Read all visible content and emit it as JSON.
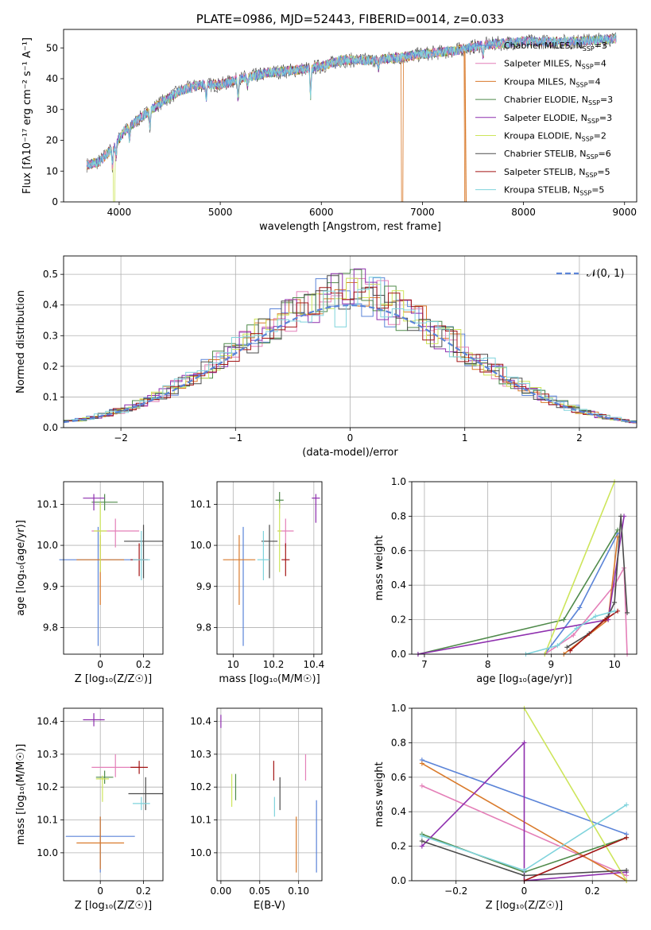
{
  "colors": {
    "chabrier_miles": "#5b84d8",
    "salpeter_miles": "#e47fb8",
    "kroupa_miles": "#d97a2b",
    "chabrier_elodie": "#4f8a4a",
    "salpeter_elodie": "#8e2fae",
    "kroupa_elodie": "#cde55a",
    "chabrier_stelib": "#4b4b4b",
    "salpeter_stelib": "#a31515",
    "kroupa_stelib": "#7fd3dc"
  },
  "chart_data": [
    {
      "id": "spectrum",
      "type": "line",
      "title": "PLATE=0986, MJD=52443, FIBERID=0014, z=0.033",
      "xlabel": "wavelength [Angstrom, rest frame]",
      "ylabel": "Flux [f$_\\lambda$10$^{-17}$ erg cm$^{-2}$ s$^{-1}$ A$^{-1}$]",
      "ylabel_display": "Flux [fλ10⁻¹⁷ erg cm⁻² s⁻¹ A⁻¹]",
      "xlim": [
        3450,
        9120
      ],
      "ylim": [
        0,
        56
      ],
      "xticks": [
        4000,
        5000,
        6000,
        7000,
        8000,
        9000
      ],
      "yticks": [
        0,
        10,
        20,
        30,
        40,
        50
      ],
      "legend_position": "top-right",
      "legend": [
        {
          "key": "chabrier_miles",
          "label": "Chabrier MILES, N",
          "sub": "SSP",
          "tail": "=3"
        },
        {
          "key": "salpeter_miles",
          "label": "Salpeter MILES, N",
          "sub": "SSP",
          "tail": "=4"
        },
        {
          "key": "kroupa_miles",
          "label": "Kroupa MILES, N",
          "sub": "SSP",
          "tail": "=4"
        },
        {
          "key": "chabrier_elodie",
          "label": "Chabrier ELODIE, N",
          "sub": "SSP",
          "tail": "=3"
        },
        {
          "key": "salpeter_elodie",
          "label": "Salpeter ELODIE, N",
          "sub": "SSP",
          "tail": "=3"
        },
        {
          "key": "kroupa_elodie",
          "label": "Kroupa ELODIE, N",
          "sub": "SSP",
          "tail": "=2"
        },
        {
          "key": "chabrier_stelib",
          "label": "Chabrier STELIB, N",
          "sub": "SSP",
          "tail": "=6"
        },
        {
          "key": "salpeter_stelib",
          "label": "Salpeter STELIB, N",
          "sub": "SSP",
          "tail": "=5"
        },
        {
          "key": "kroupa_stelib",
          "label": "Kroupa STELIB, N",
          "sub": "SSP",
          "tail": "=5"
        }
      ],
      "continuum_points": [
        [
          3680,
          12
        ],
        [
          3800,
          13
        ],
        [
          3950,
          18
        ],
        [
          4050,
          23
        ],
        [
          4200,
          27
        ],
        [
          4400,
          32
        ],
        [
          4600,
          36
        ],
        [
          4800,
          38
        ],
        [
          5000,
          38
        ],
        [
          5200,
          40
        ],
        [
          5500,
          42
        ],
        [
          5800,
          43
        ],
        [
          6000,
          44
        ],
        [
          6200,
          46
        ],
        [
          6500,
          46
        ],
        [
          6800,
          47
        ],
        [
          7000,
          48
        ],
        [
          7300,
          49
        ],
        [
          7600,
          51
        ],
        [
          8000,
          52
        ],
        [
          8500,
          52
        ],
        [
          8900,
          53
        ]
      ],
      "absorption_features": [
        [
          3934,
          6
        ],
        [
          3968,
          5
        ],
        [
          4102,
          4
        ],
        [
          4304,
          5
        ],
        [
          4861,
          4
        ],
        [
          5175,
          6
        ],
        [
          5270,
          3
        ],
        [
          5893,
          9
        ],
        [
          6563,
          3
        ],
        [
          7600,
          4
        ]
      ],
      "model_breaks": [
        {
          "key": "kroupa_elodie",
          "x": 3950
        },
        {
          "key": "kroupa_miles",
          "x": 6800
        },
        {
          "key": "kroupa_miles",
          "x": 7420
        }
      ]
    },
    {
      "id": "residuals",
      "type": "area",
      "xlabel": "(data-model)/error",
      "ylabel": "Normed distribution",
      "xlim": [
        -2.5,
        2.5
      ],
      "ylim": [
        0,
        0.56
      ],
      "xticks": [
        -2,
        -1,
        0,
        1,
        2
      ],
      "yticks": [
        0.0,
        0.1,
        0.2,
        0.3,
        0.4,
        0.5
      ],
      "grid": true,
      "legend_position": "top-right",
      "normal_label": "𝒩(0, 1)",
      "bin_width": 0.1
    },
    {
      "id": "age_vs_Z",
      "type": "scatter",
      "xlabel": "Z [log₁₀(Z/Z☉)]",
      "ylabel": "age  [log₁₀(age/yr)]",
      "xlim": [
        -0.17,
        0.29
      ],
      "ylim": [
        9.735,
        10.155
      ],
      "xticks": [
        0.0,
        0.2
      ],
      "yticks": [
        9.8,
        9.9,
        10.0,
        10.1
      ],
      "grid": true,
      "points": [
        {
          "key": "chabrier_miles",
          "x": -0.01,
          "y": 9.965,
          "xerr": 0.18,
          "yerr": [
            0.21,
            0.08
          ]
        },
        {
          "key": "salpeter_miles",
          "x": 0.07,
          "y": 10.035,
          "xerr": 0.11,
          "yerr": [
            0.04,
            0.03
          ]
        },
        {
          "key": "kroupa_miles",
          "x": 0.0,
          "y": 9.965,
          "xerr": 0.11,
          "yerr": [
            0.11,
            0.06
          ]
        },
        {
          "key": "chabrier_elodie",
          "x": 0.02,
          "y": 10.105,
          "xerr": 0.06,
          "yerr": [
            0.02,
            0.02
          ]
        },
        {
          "key": "salpeter_elodie",
          "x": -0.03,
          "y": 10.115,
          "xerr": 0.05,
          "yerr": [
            0.03,
            0.01
          ]
        },
        {
          "key": "kroupa_elodie",
          "x": 0.0,
          "y": 10.035,
          "xerr": 0.03,
          "yerr": [
            0.1,
            0.07
          ]
        },
        {
          "key": "chabrier_stelib",
          "x": 0.2,
          "y": 10.01,
          "xerr": 0.09,
          "yerr": [
            0.09,
            0.04
          ]
        },
        {
          "key": "salpeter_stelib",
          "x": 0.18,
          "y": 9.965,
          "xerr": 0.04,
          "yerr": [
            0.04,
            0.04
          ]
        },
        {
          "key": "kroupa_stelib",
          "x": 0.19,
          "y": 9.965,
          "xerr": 0.04,
          "yerr": [
            0.05,
            0.07
          ]
        }
      ]
    },
    {
      "id": "age_vs_mass",
      "type": "scatter",
      "xlabel": "mass [log₁₀(M/M☉)]",
      "xlim": [
        9.92,
        10.44
      ],
      "ylim": [
        9.735,
        10.155
      ],
      "xticks": [
        10.0,
        10.2,
        10.4
      ],
      "yticks": [
        9.8,
        9.9,
        10.0,
        10.1
      ],
      "grid": true,
      "points": [
        {
          "key": "chabrier_miles",
          "x": 10.05,
          "y": 9.965,
          "xerr": 0.0,
          "yerr": [
            0.21,
            0.08
          ]
        },
        {
          "key": "salpeter_miles",
          "x": 10.26,
          "y": 10.035,
          "xerr": 0.04,
          "yerr": [
            0.04,
            0.03
          ]
        },
        {
          "key": "kroupa_miles",
          "x": 10.03,
          "y": 9.965,
          "xerr": 0.08,
          "yerr": [
            0.11,
            0.06
          ]
        },
        {
          "key": "chabrier_elodie",
          "x": 10.23,
          "y": 10.11,
          "xerr": 0.02,
          "yerr": [
            0.02,
            0.02
          ]
        },
        {
          "key": "salpeter_elodie",
          "x": 10.41,
          "y": 10.115,
          "xerr": 0.02,
          "yerr": [
            0.06,
            0.01
          ]
        },
        {
          "key": "kroupa_elodie",
          "x": 10.23,
          "y": 10.035,
          "xerr": 0.01,
          "yerr": [
            0.1,
            0.07
          ]
        },
        {
          "key": "chabrier_stelib",
          "x": 10.18,
          "y": 10.01,
          "xerr": 0.04,
          "yerr": [
            0.09,
            0.04
          ]
        },
        {
          "key": "salpeter_stelib",
          "x": 10.26,
          "y": 9.965,
          "xerr": 0.02,
          "yerr": [
            0.04,
            0.04
          ]
        },
        {
          "key": "kroupa_stelib",
          "x": 10.15,
          "y": 9.965,
          "xerr": 0.03,
          "yerr": [
            0.05,
            0.07
          ]
        }
      ]
    },
    {
      "id": "mass_weight_vs_age",
      "type": "line",
      "xlabel": "age  [log₁₀(age/yr)]",
      "ylabel": "mass weight",
      "xlim": [
        6.8,
        10.35
      ],
      "ylim": [
        0,
        1
      ],
      "xticks": [
        7,
        8,
        9,
        10
      ],
      "yticks": [
        0.0,
        0.2,
        0.4,
        0.6,
        0.8,
        1.0
      ],
      "grid": true,
      "series": [
        {
          "key": "chabrier_miles",
          "x": [
            8.9,
            9.45,
            10.05
          ],
          "y": [
            0.0,
            0.27,
            0.7
          ]
        },
        {
          "key": "salpeter_miles",
          "x": [
            8.9,
            9.35,
            10.0,
            10.15,
            10.2
          ],
          "y": [
            0.0,
            0.11,
            0.4,
            0.5,
            0.0
          ]
        },
        {
          "key": "kroupa_miles",
          "x": [
            9.2,
            9.9,
            10.05
          ],
          "y": [
            0.0,
            0.2,
            0.68
          ]
        },
        {
          "key": "chabrier_elodie",
          "x": [
            6.9,
            9.2,
            10.05
          ],
          "y": [
            0.0,
            0.2,
            0.72
          ]
        },
        {
          "key": "salpeter_elodie",
          "x": [
            6.9,
            9.9,
            10.15
          ],
          "y": [
            0.0,
            0.2,
            0.8
          ]
        },
        {
          "key": "kroupa_elodie",
          "x": [
            8.9,
            10.0
          ],
          "y": [
            0.0,
            1.0
          ]
        },
        {
          "key": "chabrier_stelib",
          "x": [
            9.25,
            9.6,
            9.9,
            10.0,
            10.1,
            10.2
          ],
          "y": [
            0.04,
            0.12,
            0.22,
            0.3,
            0.8,
            0.24
          ]
        },
        {
          "key": "salpeter_stelib",
          "x": [
            9.3,
            9.85,
            10.05
          ],
          "y": [
            0.02,
            0.2,
            0.25
          ]
        },
        {
          "key": "kroupa_stelib",
          "x": [
            8.6,
            9.1,
            9.4,
            9.7,
            10.0
          ],
          "y": [
            0.0,
            0.05,
            0.15,
            0.22,
            0.25
          ]
        }
      ]
    },
    {
      "id": "mass_vs_Z",
      "type": "scatter",
      "xlabel": "Z [log₁₀(Z/Z☉)]",
      "ylabel": "mass [log₁₀(M/M☉)]",
      "xlim": [
        -0.17,
        0.29
      ],
      "ylim": [
        9.915,
        10.44
      ],
      "xticks": [
        0.0,
        0.2
      ],
      "yticks": [
        10.0,
        10.1,
        10.2,
        10.3,
        10.4
      ],
      "grid": true,
      "points": [
        {
          "key": "chabrier_miles",
          "x": 0.0,
          "y": 10.05,
          "xerr": 0.16,
          "yerr": [
            0.11,
            0.06
          ]
        },
        {
          "key": "salpeter_miles",
          "x": 0.07,
          "y": 10.26,
          "xerr": 0.11,
          "yerr": [
            0.03,
            0.04
          ]
        },
        {
          "key": "kroupa_miles",
          "x": 0.0,
          "y": 10.03,
          "xerr": 0.11,
          "yerr": [
            0.08,
            0.08
          ]
        },
        {
          "key": "chabrier_elodie",
          "x": 0.02,
          "y": 10.23,
          "xerr": 0.04,
          "yerr": [
            0.02,
            0.02
          ]
        },
        {
          "key": "salpeter_elodie",
          "x": -0.03,
          "y": 10.405,
          "xerr": 0.05,
          "yerr": [
            0.02,
            0.02
          ]
        },
        {
          "key": "kroupa_elodie",
          "x": 0.01,
          "y": 10.225,
          "xerr": 0.03,
          "yerr": [
            0.07,
            0.01
          ]
        },
        {
          "key": "chabrier_stelib",
          "x": 0.21,
          "y": 10.18,
          "xerr": 0.08,
          "yerr": [
            0.05,
            0.05
          ]
        },
        {
          "key": "salpeter_stelib",
          "x": 0.18,
          "y": 10.26,
          "xerr": 0.04,
          "yerr": [
            0.02,
            0.02
          ]
        },
        {
          "key": "kroupa_stelib",
          "x": 0.19,
          "y": 10.15,
          "xerr": 0.04,
          "yerr": [
            0.02,
            0.02
          ]
        }
      ]
    },
    {
      "id": "mass_vs_ebv",
      "type": "scatter",
      "xlabel": "E(B-V)",
      "xlim": [
        -0.005,
        0.13
      ],
      "ylim": [
        9.915,
        10.44
      ],
      "xticks": [
        0.0,
        0.05,
        0.1
      ],
      "xticklabels": [
        "0.00",
        "0.05",
        "0.10"
      ],
      "yticks": [
        10.0,
        10.1,
        10.2,
        10.3,
        10.4
      ],
      "grid": true,
      "points": [
        {
          "key": "chabrier_miles",
          "x": 0.123,
          "y": 10.05,
          "yerr": [
            0.11,
            0.11
          ]
        },
        {
          "key": "salpeter_miles",
          "x": 0.109,
          "y": 10.26,
          "yerr": [
            0.04,
            0.04
          ]
        },
        {
          "key": "kroupa_miles",
          "x": 0.097,
          "y": 10.03,
          "yerr": [
            0.09,
            0.08
          ]
        },
        {
          "key": "chabrier_elodie",
          "x": 0.019,
          "y": 10.2,
          "yerr": [
            0.04,
            0.04
          ]
        },
        {
          "key": "salpeter_elodie",
          "x": 0.0,
          "y": 10.4,
          "yerr": [
            0.02,
            0.02
          ]
        },
        {
          "key": "kroupa_elodie",
          "x": 0.014,
          "y": 10.19,
          "yerr": [
            0.05,
            0.05
          ]
        },
        {
          "key": "chabrier_stelib",
          "x": 0.076,
          "y": 10.18,
          "yerr": [
            0.05,
            0.05
          ]
        },
        {
          "key": "salpeter_stelib",
          "x": 0.068,
          "y": 10.25,
          "yerr": [
            0.03,
            0.03
          ]
        },
        {
          "key": "kroupa_stelib",
          "x": 0.069,
          "y": 10.14,
          "yerr": [
            0.03,
            0.03
          ]
        }
      ]
    },
    {
      "id": "mass_weight_vs_Z",
      "type": "line",
      "xlabel": "Z [log₁₀(Z/Z☉)]",
      "ylabel": "mass weight",
      "xlim": [
        -0.33,
        0.33
      ],
      "ylim": [
        0,
        1
      ],
      "xticks": [
        -0.2,
        0.0,
        0.2
      ],
      "yticks": [
        0.0,
        0.2,
        0.4,
        0.6,
        0.8,
        1.0
      ],
      "grid": true,
      "series": [
        {
          "key": "chabrier_miles",
          "x": [
            -0.3,
            0.3
          ],
          "y": [
            0.7,
            0.27
          ]
        },
        {
          "key": "salpeter_miles",
          "x": [
            -0.3,
            0.3
          ],
          "y": [
            0.55,
            0.03
          ]
        },
        {
          "key": "kroupa_miles",
          "x": [
            -0.3,
            0.3
          ],
          "y": [
            0.68,
            0.0
          ]
        },
        {
          "key": "chabrier_elodie",
          "x": [
            -0.3,
            0.0,
            0.3
          ],
          "y": [
            0.27,
            0.05,
            0.25
          ]
        },
        {
          "key": "salpeter_elodie",
          "x": [
            -0.3,
            0.0,
            0.0,
            0.3
          ],
          "y": [
            0.2,
            0.8,
            0.0,
            0.05
          ]
        },
        {
          "key": "kroupa_elodie",
          "x": [
            0.0,
            0.3
          ],
          "y": [
            1.0,
            0.0
          ]
        },
        {
          "key": "chabrier_stelib",
          "x": [
            -0.3,
            0.0,
            0.3
          ],
          "y": [
            0.23,
            0.03,
            0.06
          ]
        },
        {
          "key": "salpeter_stelib",
          "x": [
            0.0,
            0.3
          ],
          "y": [
            0.0,
            0.25
          ]
        },
        {
          "key": "kroupa_stelib",
          "x": [
            -0.3,
            0.0,
            0.3
          ],
          "y": [
            0.26,
            0.06,
            0.44
          ]
        }
      ]
    }
  ]
}
